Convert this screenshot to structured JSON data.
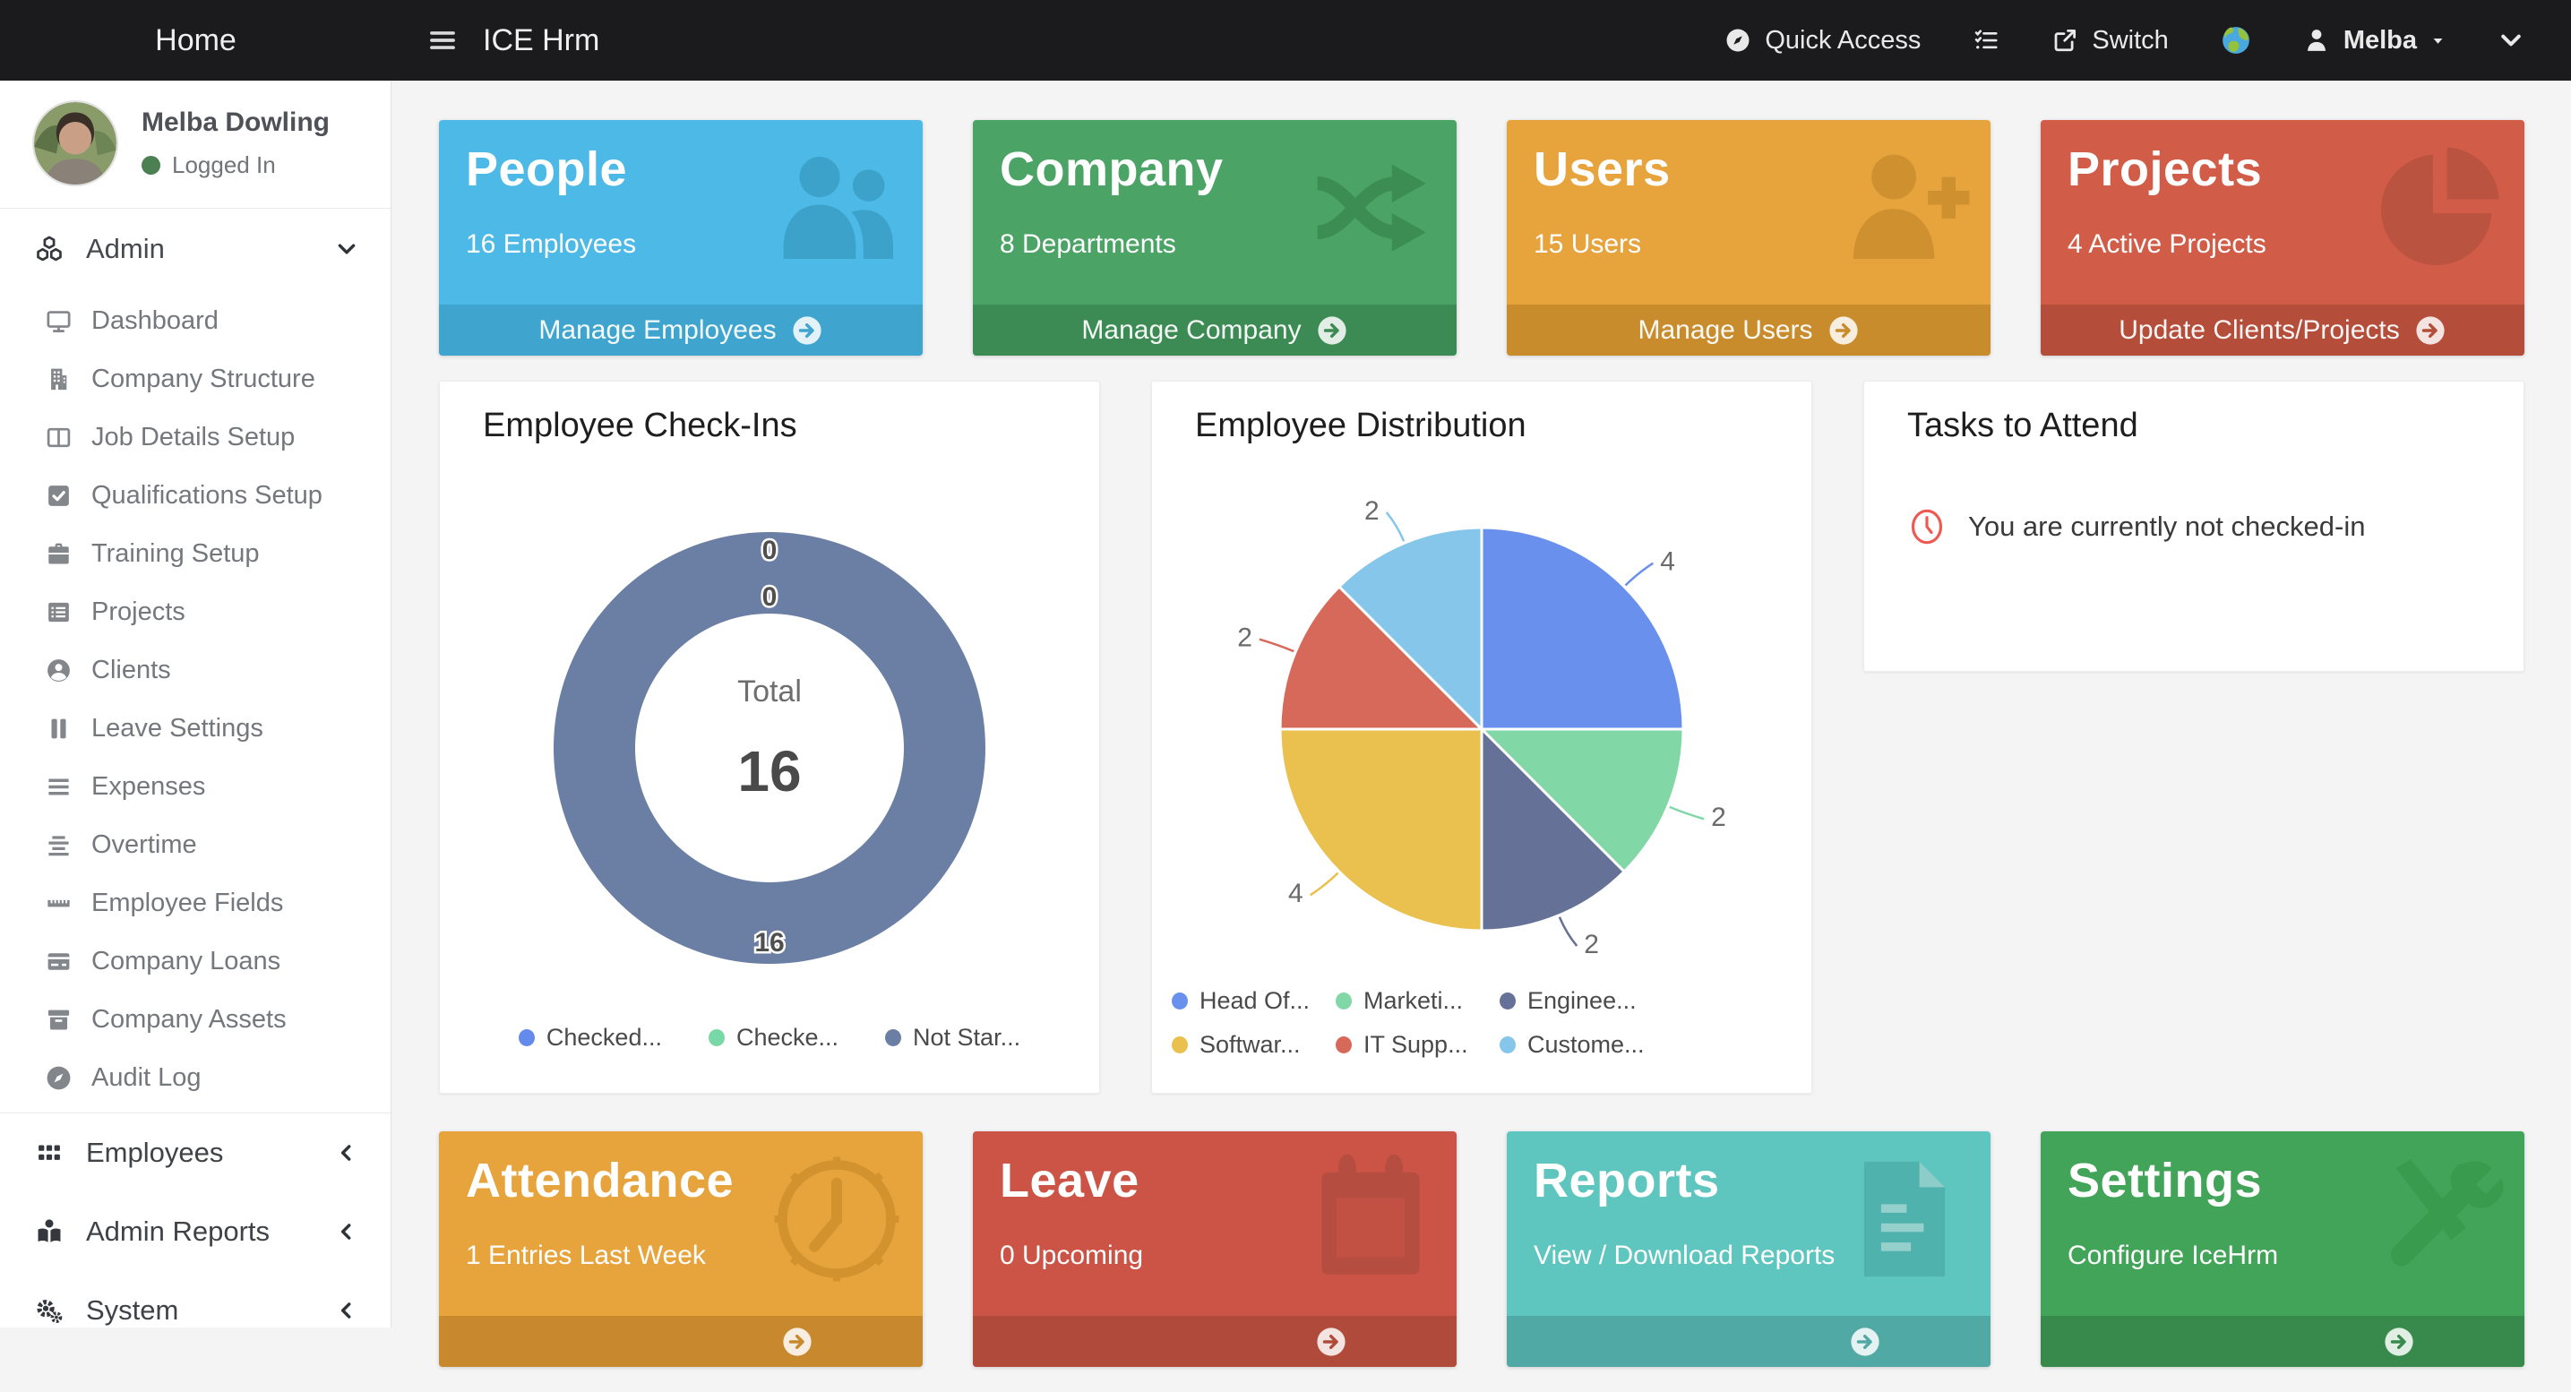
{
  "navbar": {
    "home_label": "Home",
    "app_title": "ICE Hrm",
    "quick_access_label": "Quick Access",
    "switch_label": "Switch",
    "user_name": "Melba"
  },
  "sidebar": {
    "profile": {
      "name": "Melba Dowling",
      "status": "Logged In",
      "status_color": "#4c7f52"
    },
    "sections": [
      {
        "label": "Admin",
        "icon": "cubes-icon",
        "chevron": "down",
        "items": [
          {
            "label": "Dashboard",
            "icon": "monitor-icon"
          },
          {
            "label": "Company Structure",
            "icon": "building-icon"
          },
          {
            "label": "Job Details Setup",
            "icon": "columns-icon"
          },
          {
            "label": "Qualifications Setup",
            "icon": "check-square-icon"
          },
          {
            "label": "Training Setup",
            "icon": "briefcase-icon"
          },
          {
            "label": "Projects",
            "icon": "list-icon"
          },
          {
            "label": "Clients",
            "icon": "user-circle-icon"
          },
          {
            "label": "Leave Settings",
            "icon": "pause-icon"
          },
          {
            "label": "Expenses",
            "icon": "lines-icon"
          },
          {
            "label": "Overtime",
            "icon": "align-icon"
          },
          {
            "label": "Employee Fields",
            "icon": "ruler-icon"
          },
          {
            "label": "Company Loans",
            "icon": "credit-card-icon"
          },
          {
            "label": "Company Assets",
            "icon": "archive-icon"
          },
          {
            "label": "Audit Log",
            "icon": "compass-icon"
          }
        ]
      },
      {
        "label": "Employees",
        "icon": "grid-icon",
        "chevron": "left",
        "items": []
      },
      {
        "label": "Admin Reports",
        "icon": "book-user-icon",
        "chevron": "left",
        "items": []
      },
      {
        "label": "System",
        "icon": "gears-icon",
        "chevron": "left",
        "items": []
      }
    ]
  },
  "cards_top": [
    {
      "title": "People",
      "subtitle": "16 Employees",
      "footer_label": "Manage Employees",
      "icon": "people-icon",
      "bg": "#4db9e6",
      "footer_bg": "#3fa5cf",
      "icon_color": "#3da2c9"
    },
    {
      "title": "Company",
      "subtitle": "8 Departments",
      "footer_label": "Manage Company",
      "icon": "shuffle-icon",
      "bg": "#4ba365",
      "footer_bg": "#3d8b54",
      "icon_color": "#3c8d53"
    },
    {
      "title": "Users",
      "subtitle": "15 Users",
      "footer_label": "Manage Users",
      "icon": "user-plus-icon",
      "bg": "#e7a33c",
      "footer_bg": "#c88c2c",
      "icon_color": "#cf9030"
    },
    {
      "title": "Projects",
      "subtitle": "4 Active Projects",
      "footer_label": "Update Clients/Projects",
      "icon": "pie-icon",
      "bg": "#d15c47",
      "footer_bg": "#b44d3a",
      "icon_color": "#ba5340"
    }
  ],
  "cards_bottom": [
    {
      "title": "Attendance",
      "subtitle": "1 Entries Last Week",
      "footer_label": null,
      "icon": "clock-big-icon",
      "bg": "#e7a33c",
      "footer_bg": "#c8892e",
      "icon_color": "#d2932e"
    },
    {
      "title": "Leave",
      "subtitle": "0 Upcoming",
      "footer_label": null,
      "icon": "calendar-icon",
      "bg": "#cc5446",
      "footer_bg": "#b04b3b",
      "icon_color": "#b54e40"
    },
    {
      "title": "Reports",
      "subtitle": "View / Download Reports",
      "footer_label": null,
      "icon": "document-icon",
      "bg": "#5fc5bf",
      "footer_bg": "#51a9a5",
      "icon_color": "#50b2ac"
    },
    {
      "title": "Settings",
      "subtitle": "Configure IceHrm",
      "footer_label": null,
      "icon": "tools-icon",
      "bg": "#42a458",
      "footer_bg": "#378a4b",
      "icon_color": "#399b4e"
    }
  ],
  "tasks": {
    "title": "Tasks to Attend",
    "items": [
      {
        "icon": "clock-icon",
        "text": "You are currently not checked-in"
      }
    ]
  },
  "chart_data": [
    {
      "id": "employee-checkins",
      "type": "donut",
      "title": "Employee Check-Ins",
      "center": {
        "label": "Total",
        "value": "16"
      },
      "series": [
        {
          "label": "Checked...",
          "value": 0,
          "color": "#648bec"
        },
        {
          "label": "Checke...",
          "value": 0,
          "color": "#78d8a6"
        },
        {
          "label": "Not Star...",
          "value": 16,
          "color": "#6b7ea4"
        }
      ],
      "legend_position": "bottom-center",
      "grid": false
    },
    {
      "id": "employee-distribution",
      "type": "pie",
      "title": "Employee Distribution",
      "series": [
        {
          "label": "Head Of...",
          "value": 4,
          "color": "#6990ec"
        },
        {
          "label": "Marketi...",
          "value": 2,
          "color": "#82d7a6"
        },
        {
          "label": "Enginee...",
          "value": 2,
          "color": "#667197"
        },
        {
          "label": "Softwar...",
          "value": 4,
          "color": "#eac14e"
        },
        {
          "label": "IT Supp...",
          "value": 2,
          "color": "#d7695a"
        },
        {
          "label": "Custome...",
          "value": 2,
          "color": "#85c6ea"
        }
      ],
      "legend_position": "bottom-left",
      "grid": false
    }
  ]
}
